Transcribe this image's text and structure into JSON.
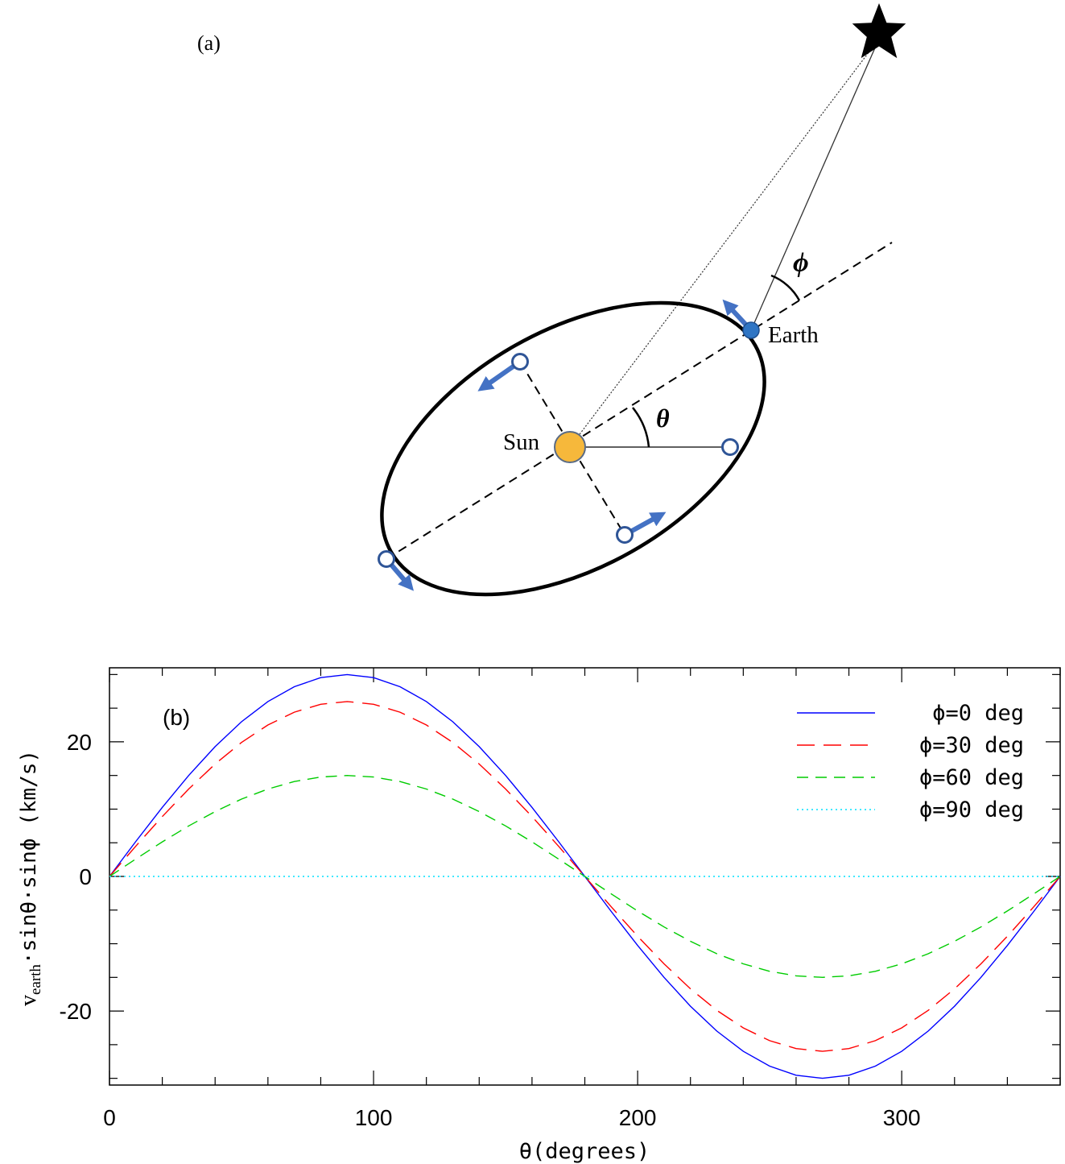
{
  "diagram": {
    "panel_label": "(a)",
    "sun_label": "Sun",
    "earth_label": "Earth",
    "theta_symbol": "θ",
    "phi_symbol": "ϕ",
    "colors": {
      "orbit": "#000000",
      "sun_fill": "#f6b83b",
      "earth_fill": "#2f75c4",
      "arrow": "#4472c4",
      "marker_stroke": "#2f5597"
    }
  },
  "chart_data": {
    "type": "line",
    "panel_label": "(b)",
    "xlabel": "θ(degrees)",
    "ylabel_main": "v",
    "ylabel_sub": "earth",
    "ylabel_rest": "·sinθ·sinϕ (km/s)",
    "xlim": [
      0,
      360
    ],
    "ylim": [
      -31,
      31
    ],
    "xticks": [
      0,
      100,
      200,
      300
    ],
    "yticks": [
      20,
      0,
      -20
    ],
    "xtick_labels": [
      "0",
      "100",
      "200",
      "300"
    ],
    "ytick_labels": [
      "20",
      "0",
      "-20"
    ],
    "x_minor_step": 20,
    "y_minor_step": 5,
    "grid": false,
    "legend_position": "top-right",
    "amplitude_kms": 30,
    "x": [
      0,
      10,
      20,
      30,
      40,
      50,
      60,
      70,
      80,
      90,
      100,
      110,
      120,
      130,
      140,
      150,
      160,
      170,
      180,
      190,
      200,
      210,
      220,
      230,
      240,
      250,
      260,
      270,
      280,
      290,
      300,
      310,
      320,
      330,
      340,
      350,
      360
    ],
    "series": [
      {
        "name": "ϕ=0 deg",
        "color": "#0000ff",
        "style": "solid",
        "values": [
          0,
          5.21,
          10.26,
          15.0,
          19.28,
          22.98,
          25.98,
          28.19,
          29.54,
          30.0,
          29.54,
          28.19,
          25.98,
          22.98,
          19.28,
          15.0,
          10.26,
          5.21,
          0,
          -5.21,
          -10.26,
          -15.0,
          -19.28,
          -22.98,
          -25.98,
          -28.19,
          -29.54,
          -30.0,
          -29.54,
          -28.19,
          -25.98,
          -22.98,
          -19.28,
          -15.0,
          -10.26,
          -5.21,
          0
        ]
      },
      {
        "name": "ϕ=30 deg",
        "color": "#ff0000",
        "style": "long-dash",
        "values": [
          0,
          4.51,
          8.89,
          12.99,
          16.7,
          19.9,
          22.5,
          24.41,
          25.58,
          25.98,
          25.58,
          24.41,
          22.5,
          19.9,
          16.7,
          12.99,
          8.89,
          4.51,
          0,
          -4.51,
          -8.89,
          -12.99,
          -16.7,
          -19.9,
          -22.5,
          -24.41,
          -25.58,
          -25.98,
          -25.58,
          -24.41,
          -22.5,
          -19.9,
          -16.7,
          -12.99,
          -8.89,
          -4.51,
          0
        ]
      },
      {
        "name": "ϕ=60 deg",
        "color": "#00cc00",
        "style": "dash",
        "values": [
          0,
          2.6,
          5.13,
          7.5,
          9.64,
          11.49,
          12.99,
          14.1,
          14.77,
          15.0,
          14.77,
          14.1,
          12.99,
          11.49,
          9.64,
          7.5,
          5.13,
          2.6,
          0,
          -2.6,
          -5.13,
          -7.5,
          -9.64,
          -11.49,
          -12.99,
          -14.1,
          -14.77,
          -15.0,
          -14.77,
          -14.1,
          -12.99,
          -11.49,
          -9.64,
          -7.5,
          -5.13,
          -2.6,
          0
        ]
      },
      {
        "name": "ϕ=90 deg",
        "color": "#00e0ff",
        "style": "dotted",
        "values": [
          0,
          0,
          0,
          0,
          0,
          0,
          0,
          0,
          0,
          0,
          0,
          0,
          0,
          0,
          0,
          0,
          0,
          0,
          0,
          0,
          0,
          0,
          0,
          0,
          0,
          0,
          0,
          0,
          0,
          0,
          0,
          0,
          0,
          0,
          0,
          0,
          0
        ]
      }
    ]
  }
}
